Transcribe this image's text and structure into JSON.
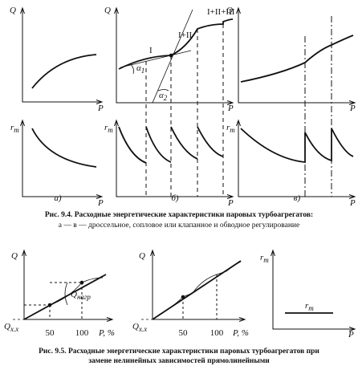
{
  "figure_9_4": {
    "axis_q": "Q",
    "axis_p": "P",
    "axis_r": {
      "symbol": "r",
      "subscript": "т"
    },
    "panel_labels": [
      "а)",
      "б)",
      "в)"
    ],
    "curve_labels": [
      "I",
      "I+II",
      "I+II+III"
    ],
    "angles": [
      {
        "symbol": "α",
        "subscript": "1"
      },
      {
        "symbol": "α",
        "subscript": "2"
      }
    ],
    "caption": {
      "title": "Рис. 9.4. Расходные энергетические характеристики паровых турбоагрегатов:",
      "subtitle": "а — в — дроссельное, сопловое или клапанное и обводное регулирование"
    }
  },
  "figure_9_5": {
    "axis_q": "Q",
    "q_idle": {
      "symbol": "Q",
      "subscript": "x.x"
    },
    "q_load": {
      "symbol": "Q",
      "subscript": "нагр"
    },
    "p_axis": "P, %",
    "ticks": [
      50,
      100
    ],
    "axis_r": {
      "symbol": "r",
      "subscript": "т"
    },
    "axis_p": "P",
    "caption": {
      "line1": "Рис. 9.5. Расходные энергетические характеристики паровых турбоагрегатов при",
      "line2": "замене нелинейных зависимостей прямолинейными"
    }
  }
}
